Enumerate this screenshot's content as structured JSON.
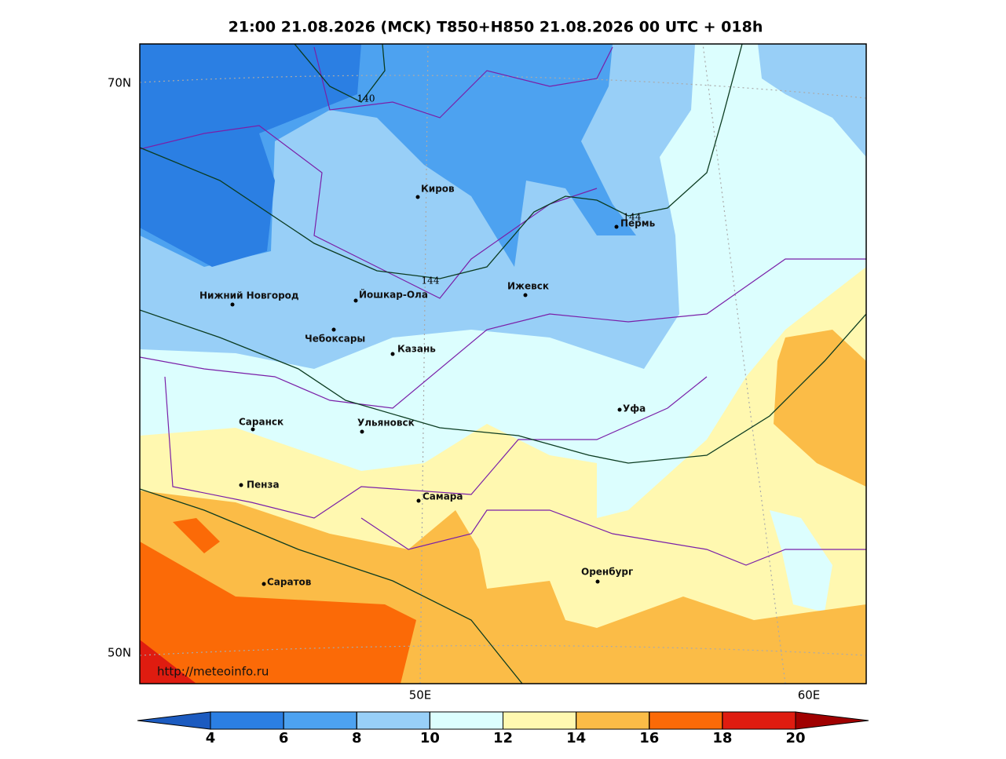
{
  "title": "21:00 21.08.2026 (MCK) T850+H850 21.08.2026 00 UTC + 018h",
  "lat_labels": [
    "70N",
    "50N"
  ],
  "lon_labels": [
    "50E",
    "60E"
  ],
  "cities": [
    "Киров",
    "Пермь",
    "Нижний Новгород",
    "Йошкар-Ола",
    "Ижевск",
    "Чебоксары",
    "Казань",
    "Уфа",
    "Саранск",
    "Ульяновск",
    "Пенза",
    "Самара",
    "Оренбург",
    "Саратов"
  ],
  "contour_labels": [
    140,
    144,
    144
  ],
  "source": "http://meteoinfo.ru",
  "colorbar": {
    "ticks": [
      4,
      6,
      8,
      10,
      12,
      14,
      16,
      18,
      20
    ],
    "colors": [
      "#2b7fe3",
      "#4da2f0",
      "#98cff7",
      "#dcfefe",
      "#fff8b0",
      "#fbbc47",
      "#fb6a07",
      "#df1c10"
    ],
    "under_color": "#1c5bc0",
    "over_color": "#a00000"
  }
}
